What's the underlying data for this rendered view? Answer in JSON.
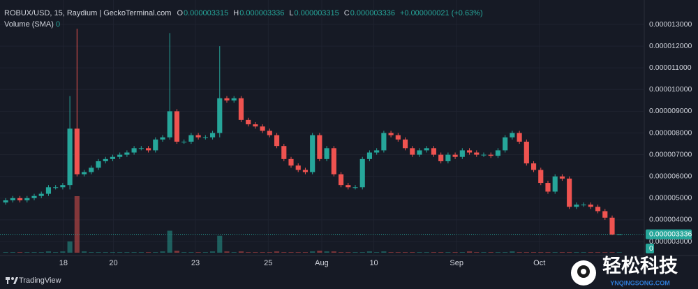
{
  "chart_data": {
    "type": "candlestick",
    "title": "ROBUX/USD, 15, Raydium | GeckoTerminal.com",
    "legend_ohlc": [
      {
        "name": "O",
        "value": "0.000003315"
      },
      {
        "name": "H",
        "value": "0.000003336"
      },
      {
        "name": "L",
        "value": "0.000003315"
      },
      {
        "name": "C",
        "value": "0.000003336"
      }
    ],
    "change": "+0.000000021 (+0.63%)",
    "volume_name": "Volume (SMA)",
    "volume_label": "0",
    "up_color": "#26a69a",
    "down_color": "#ef5350",
    "open": [
      4.8e-06,
      4.9e-06,
      5e-06,
      4.9e-06,
      5e-06,
      5.1e-06,
      5.2e-06,
      5.5e-06,
      5.5e-06,
      5.6e-06,
      8.2e-06,
      6.1e-06,
      6.2e-06,
      6.4e-06,
      6.7e-06,
      6.8e-06,
      6.9e-06,
      7e-06,
      7.1e-06,
      7.3e-06,
      7.3e-06,
      7.2e-06,
      7.7e-06,
      7.8e-06,
      9e-06,
      7.6e-06,
      7.6e-06,
      7.9e-06,
      7.8e-06,
      7.8e-06,
      8e-06,
      9.6e-06,
      9.5e-06,
      9.6e-06,
      8.6e-06,
      8.4e-06,
      8.3e-06,
      8.1e-06,
      7.9e-06,
      7.4e-06,
      6.8e-06,
      6.5e-06,
      6.3e-06,
      6.2e-06,
      7.9e-06,
      6.8e-06,
      7.3e-06,
      6.1e-06,
      5.6e-06,
      5.5e-06,
      5.5e-06,
      6.8e-06,
      7.1e-06,
      7.2e-06,
      8e-06,
      7.9e-06,
      7.7e-06,
      7.3e-06,
      7e-06,
      7.2e-06,
      7.3e-06,
      7e-06,
      6.7e-06,
      7e-06,
      6.9e-06,
      7.2e-06,
      7.1e-06,
      7e-06,
      7e-06,
      6.95e-06,
      7.2e-06,
      7.8e-06,
      8e-06,
      7.6e-06,
      6.6e-06,
      6.3e-06,
      5.7e-06,
      5.3e-06,
      6e-06,
      5.9e-06,
      4.6e-06,
      4.7e-06,
      4.7e-06,
      4.6e-06,
      4.4e-06,
      4.1e-06,
      3.315e-06
    ],
    "high": [
      5e-06,
      5.1e-06,
      5.1e-06,
      5.1e-06,
      5.2e-06,
      5.3e-06,
      5.6e-06,
      5.6e-06,
      5.7e-06,
      9.7e-06,
      1.28e-05,
      6.3e-06,
      6.5e-06,
      6.8e-06,
      6.9e-06,
      7e-06,
      7.1e-06,
      7.2e-06,
      7.4e-06,
      7.4e-06,
      7.4e-06,
      7.8e-06,
      7.9e-06,
      1.26e-05,
      9.1e-06,
      7.7e-06,
      8e-06,
      8e-06,
      7.9e-06,
      8.1e-06,
      1.2e-05,
      9.7e-06,
      9.7e-06,
      9.7e-06,
      8.7e-06,
      8.5e-06,
      8.4e-06,
      8.2e-06,
      8e-06,
      7.5e-06,
      6.9e-06,
      6.6e-06,
      6.4e-06,
      8e-06,
      8e-06,
      7.4e-06,
      7.4e-06,
      6.2e-06,
      5.7e-06,
      5.6e-06,
      6.9e-06,
      7.2e-06,
      7.3e-06,
      8.1e-06,
      8.1e-06,
      8e-06,
      7.8e-06,
      7.4e-06,
      7.3e-06,
      7.4e-06,
      7.4e-06,
      7.1e-06,
      7.1e-06,
      7.1e-06,
      7.3e-06,
      7.3e-06,
      7.2e-06,
      7.1e-06,
      7.1e-06,
      7.3e-06,
      7.9e-06,
      8.1e-06,
      8.1e-06,
      7.7e-06,
      6.7e-06,
      6.4e-06,
      5.8e-06,
      6.1e-06,
      6.1e-06,
      6e-06,
      4.8e-06,
      4.8e-06,
      4.8e-06,
      4.7e-06,
      4.5e-06,
      4.2e-06,
      3.336e-06
    ],
    "low": [
      4.7e-06,
      4.8e-06,
      4.8e-06,
      4.8e-06,
      4.9e-06,
      5e-06,
      5.1e-06,
      5.4e-06,
      5.4e-06,
      5.4e-06,
      6e-06,
      6e-06,
      6.1e-06,
      6.3e-06,
      6.6e-06,
      6.7e-06,
      6.8e-06,
      6.9e-06,
      7e-06,
      7.2e-06,
      7.1e-06,
      7.1e-06,
      7.6e-06,
      7.7e-06,
      7.5e-06,
      7.5e-06,
      7.5e-06,
      7.7e-06,
      7.7e-06,
      7.7e-06,
      7.8e-06,
      9.4e-06,
      9.4e-06,
      8.5e-06,
      8.3e-06,
      8.2e-06,
      8e-06,
      7.8e-06,
      7.3e-06,
      6.7e-06,
      6.4e-06,
      6.2e-06,
      6.1e-06,
      6.1e-06,
      6.7e-06,
      6.7e-06,
      6e-06,
      5.5e-06,
      5.4e-06,
      5.4e-06,
      5.4e-06,
      6.7e-06,
      7e-06,
      7.1e-06,
      7.8e-06,
      7.6e-06,
      7.2e-06,
      6.9e-06,
      6.9e-06,
      7.1e-06,
      6.9e-06,
      6.6e-06,
      6.6e-06,
      6.8e-06,
      6.8e-06,
      7e-06,
      6.9e-06,
      6.9e-06,
      6.85e-06,
      6.85e-06,
      7.1e-06,
      7.7e-06,
      7.5e-06,
      6.5e-06,
      6.2e-06,
      5.6e-06,
      5.2e-06,
      5.2e-06,
      5.8e-06,
      4.5e-06,
      4.5e-06,
      4.6e-06,
      4.5e-06,
      4.3e-06,
      4e-06,
      3.3e-06,
      3.315e-06
    ],
    "close": [
      4.9e-06,
      5e-06,
      4.9e-06,
      5e-06,
      5.1e-06,
      5.2e-06,
      5.5e-06,
      5.5e-06,
      5.6e-06,
      8.2e-06,
      6.1e-06,
      6.2e-06,
      6.4e-06,
      6.7e-06,
      6.8e-06,
      6.9e-06,
      7e-06,
      7.1e-06,
      7.3e-06,
      7.3e-06,
      7.2e-06,
      7.7e-06,
      7.8e-06,
      9e-06,
      7.6e-06,
      7.6e-06,
      7.9e-06,
      7.8e-06,
      7.8e-06,
      8e-06,
      9.6e-06,
      9.5e-06,
      9.6e-06,
      8.6e-06,
      8.4e-06,
      8.3e-06,
      8.1e-06,
      7.9e-06,
      7.4e-06,
      6.8e-06,
      6.5e-06,
      6.3e-06,
      6.2e-06,
      7.9e-06,
      6.8e-06,
      7.3e-06,
      6.1e-06,
      5.6e-06,
      5.5e-06,
      5.5e-06,
      6.8e-06,
      7.1e-06,
      7.2e-06,
      8e-06,
      7.9e-06,
      7.7e-06,
      7.3e-06,
      7e-06,
      7.2e-06,
      7.3e-06,
      7e-06,
      6.7e-06,
      7e-06,
      6.9e-06,
      7.2e-06,
      7.1e-06,
      7e-06,
      7e-06,
      6.95e-06,
      7.2e-06,
      7.8e-06,
      8e-06,
      7.6e-06,
      6.6e-06,
      6.3e-06,
      5.7e-06,
      5.3e-06,
      6e-06,
      5.9e-06,
      4.6e-06,
      4.7e-06,
      4.7e-06,
      4.6e-06,
      4.4e-06,
      4.1e-06,
      3.315e-06,
      3.336e-06
    ],
    "volume": [
      1,
      1,
      1,
      1,
      1,
      1,
      2,
      1,
      2,
      18,
      90,
      2,
      1,
      1,
      1,
      1,
      1,
      1,
      1,
      1,
      1,
      1,
      2,
      35,
      3,
      1,
      1,
      1,
      1,
      2,
      27,
      2,
      1,
      2,
      1,
      1,
      1,
      1,
      2,
      1,
      1,
      1,
      1,
      2,
      3,
      2,
      2,
      1,
      1,
      1,
      1,
      2,
      1,
      2,
      1,
      1,
      1,
      1,
      1,
      1,
      1,
      1,
      1,
      1,
      1,
      2,
      1,
      1,
      1,
      1,
      1,
      2,
      1,
      1,
      1,
      1,
      1,
      1,
      1,
      1,
      1,
      1,
      1,
      1,
      1,
      1,
      1
    ],
    "vlim": [
      0,
      100
    ],
    "xlim": [
      0,
      90
    ],
    "xticks": [
      {
        "value": 8.6,
        "label": "18"
      },
      {
        "value": 15.6,
        "label": "20"
      },
      {
        "value": 27.1,
        "label": "23"
      },
      {
        "value": 37.3,
        "label": "25"
      },
      {
        "value": 44.8,
        "label": "Aug"
      },
      {
        "value": 52.1,
        "label": "10"
      },
      {
        "value": 63.7,
        "label": "Sep"
      },
      {
        "value": 75.3,
        "label": "Oct"
      }
    ],
    "ylim": [
      2.39e-06,
      1.4125e-05
    ],
    "yticks": [
      {
        "value": 3e-06,
        "label": "0.000003000"
      },
      {
        "value": 4e-06,
        "label": "0.000004000"
      },
      {
        "value": 5e-06,
        "label": "0.000005000"
      },
      {
        "value": 6e-06,
        "label": "0.000006000"
      },
      {
        "value": 7e-06,
        "label": "0.000007000"
      },
      {
        "value": 8e-06,
        "label": "0.000008000"
      },
      {
        "value": 9e-06,
        "label": "0.000009000"
      },
      {
        "value": 1e-05,
        "label": "0.000010000"
      },
      {
        "value": 1.1e-05,
        "label": "0.000011000"
      },
      {
        "value": 1.2e-05,
        "label": "0.000012000"
      },
      {
        "value": 1.3e-05,
        "label": "0.000013000"
      }
    ],
    "last_price": {
      "value": 3.336e-06,
      "label": "0.000003336"
    }
  },
  "footer": "TradingView",
  "watermark": {
    "name": "轻松科技",
    "url": "YNQINGSONG.COM"
  }
}
